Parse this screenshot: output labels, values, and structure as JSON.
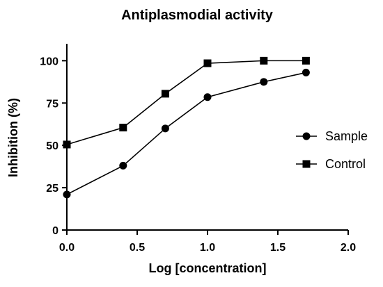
{
  "chart_data": {
    "type": "line",
    "title": "Antiplasmodial activity",
    "xlabel": "Log [concentration]",
    "ylabel": "Inhibition (%)",
    "xlim": [
      0,
      2
    ],
    "ylim": [
      0,
      110
    ],
    "x_ticks": [
      "0.0",
      "0.5",
      "1.0",
      "1.5",
      "2.0"
    ],
    "y_ticks": [
      "0",
      "25",
      "50",
      "75",
      "100"
    ],
    "grid": false,
    "legend_position": "right",
    "series": [
      {
        "name": "Sample",
        "marker": "circle",
        "x": [
          0.0,
          0.4,
          0.7,
          1.0,
          1.4,
          1.7
        ],
        "y": [
          21,
          38,
          60,
          78.5,
          87.5,
          93
        ]
      },
      {
        "name": "Control",
        "marker": "square",
        "x": [
          0.0,
          0.4,
          0.7,
          1.0,
          1.4,
          1.7
        ],
        "y": [
          50.5,
          60.5,
          80.5,
          98.5,
          100,
          100
        ]
      }
    ]
  }
}
